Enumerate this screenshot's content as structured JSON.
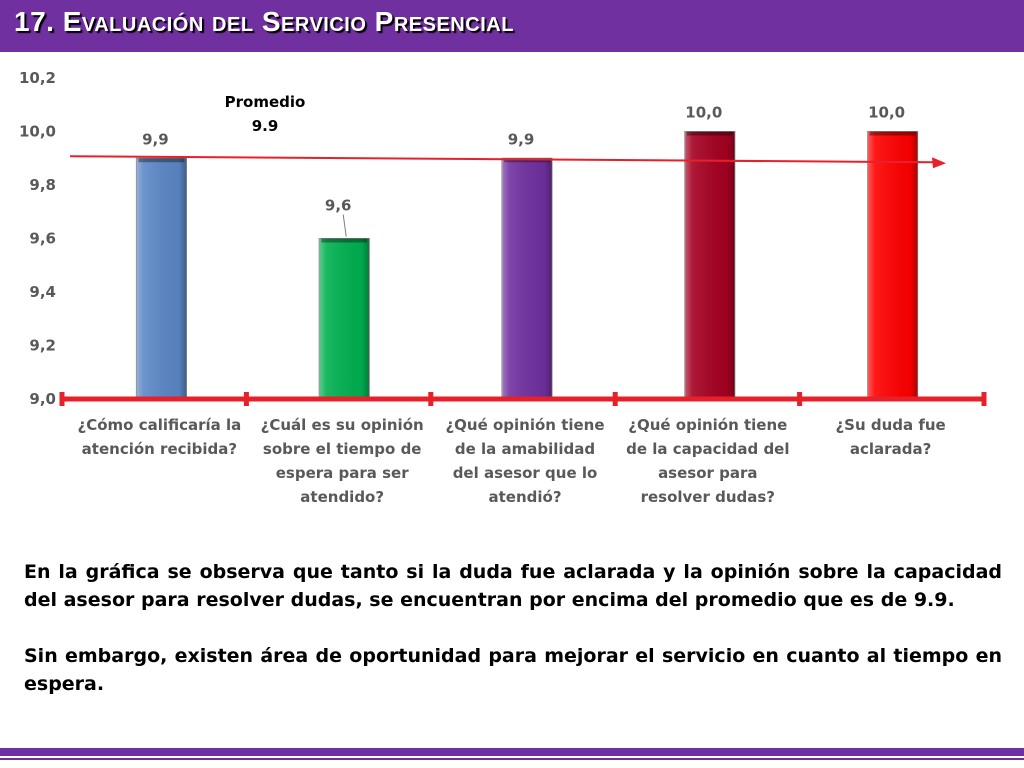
{
  "header": {
    "title": "17. Evaluación del Servicio Presencial"
  },
  "chart_data": {
    "type": "bar",
    "categories": [
      "¿Cómo calificaría la atención recibida?",
      "¿Cuál es su opinión sobre el tiempo de espera para ser atendido?",
      "¿Qué opinión tiene de la amabilidad del asesor que lo atendió?",
      "¿Qué opinión tiene de la capacidad del asesor para resolver dudas?",
      "¿Su duda fue aclarada?"
    ],
    "values": [
      9.9,
      9.6,
      9.9,
      10.0,
      10.0
    ],
    "value_labels": [
      "9,9",
      "9,6",
      "9,9",
      "10,0",
      "10,0"
    ],
    "bar_colors": [
      "#5b87c6",
      "#00b050",
      "#7030a0",
      "#a50021",
      "#ff0000"
    ],
    "ylim": [
      9.0,
      10.2
    ],
    "yticks": [
      "9,0",
      "9,2",
      "9,4",
      "9,6",
      "9,8",
      "10,0",
      "10,2"
    ],
    "grid": false,
    "annotation": {
      "line1": "Promedio",
      "line2": "9.9",
      "value": 9.9,
      "color": "#e8202a"
    },
    "axis_color": "#e8202a"
  },
  "notes": {
    "p1": "En la gráfica se observa que tanto si la duda fue aclarada y la opinión sobre la capacidad del asesor para resolver dudas, se encuentran por encima del promedio que es de 9.9.",
    "p2": "Sin embargo, existen área de oportunidad para mejorar el servicio en cuanto al tiempo en espera."
  }
}
